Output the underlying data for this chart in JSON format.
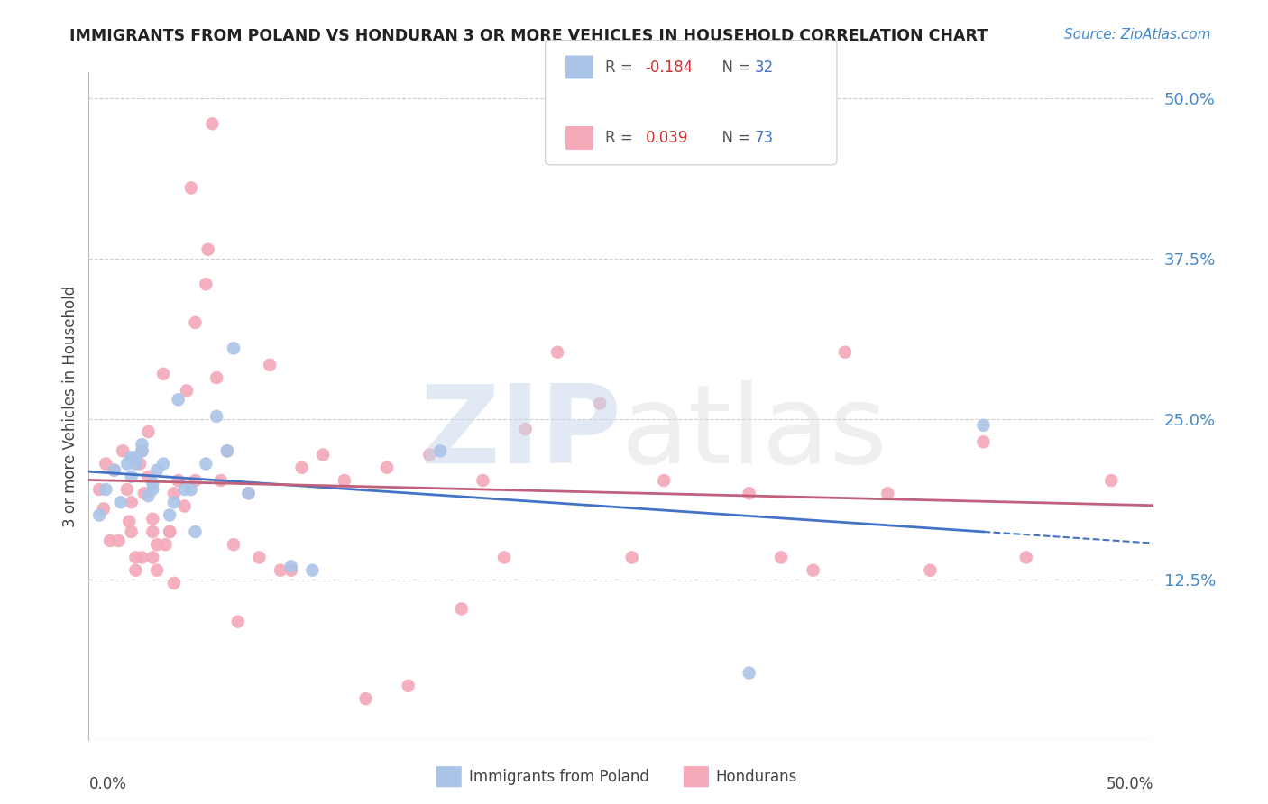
{
  "title": "IMMIGRANTS FROM POLAND VS HONDURAN 3 OR MORE VEHICLES IN HOUSEHOLD CORRELATION CHART",
  "source": "Source: ZipAtlas.com",
  "ylabel": "3 or more Vehicles in Household",
  "xlim": [
    0.0,
    0.5
  ],
  "ylim": [
    0.0,
    0.52
  ],
  "yticks": [
    0.0,
    0.125,
    0.25,
    0.375,
    0.5
  ],
  "ytick_labels": [
    "",
    "12.5%",
    "25.0%",
    "37.5%",
    "50.0%"
  ],
  "background_color": "#ffffff",
  "grid_color": "#d0d0d0",
  "poland_color": "#aac4e8",
  "honduran_color": "#f4a8b8",
  "poland_line_color": "#4472c4",
  "honduran_line_color": "#c0607a",
  "poland_R": -0.184,
  "poland_N": 32,
  "honduran_R": 0.039,
  "honduran_N": 73,
  "poland_x": [
    0.005,
    0.008,
    0.012,
    0.015,
    0.018,
    0.02,
    0.02,
    0.022,
    0.022,
    0.025,
    0.025,
    0.028,
    0.03,
    0.03,
    0.032,
    0.035,
    0.038,
    0.04,
    0.042,
    0.045,
    0.048,
    0.05,
    0.055,
    0.06,
    0.065,
    0.068,
    0.075,
    0.095,
    0.105,
    0.165,
    0.31,
    0.42
  ],
  "poland_y": [
    0.175,
    0.195,
    0.21,
    0.185,
    0.215,
    0.205,
    0.22,
    0.215,
    0.22,
    0.225,
    0.23,
    0.19,
    0.195,
    0.2,
    0.21,
    0.215,
    0.175,
    0.185,
    0.265,
    0.195,
    0.195,
    0.162,
    0.215,
    0.252,
    0.225,
    0.305,
    0.192,
    0.135,
    0.132,
    0.225,
    0.052,
    0.245
  ],
  "honduran_x": [
    0.005,
    0.007,
    0.008,
    0.01,
    0.012,
    0.014,
    0.016,
    0.018,
    0.019,
    0.02,
    0.02,
    0.022,
    0.022,
    0.024,
    0.025,
    0.025,
    0.026,
    0.028,
    0.028,
    0.03,
    0.03,
    0.03,
    0.032,
    0.032,
    0.035,
    0.036,
    0.038,
    0.038,
    0.04,
    0.04,
    0.042,
    0.045,
    0.046,
    0.048,
    0.05,
    0.05,
    0.055,
    0.056,
    0.058,
    0.06,
    0.062,
    0.065,
    0.068,
    0.07,
    0.075,
    0.08,
    0.085,
    0.09,
    0.095,
    0.1,
    0.11,
    0.12,
    0.13,
    0.14,
    0.15,
    0.16,
    0.175,
    0.185,
    0.195,
    0.205,
    0.22,
    0.24,
    0.255,
    0.27,
    0.31,
    0.325,
    0.34,
    0.355,
    0.375,
    0.395,
    0.42,
    0.44,
    0.48
  ],
  "honduran_y": [
    0.195,
    0.18,
    0.215,
    0.155,
    0.21,
    0.155,
    0.225,
    0.195,
    0.17,
    0.162,
    0.185,
    0.142,
    0.132,
    0.215,
    0.225,
    0.142,
    0.192,
    0.205,
    0.24,
    0.172,
    0.142,
    0.162,
    0.152,
    0.132,
    0.285,
    0.152,
    0.162,
    0.162,
    0.122,
    0.192,
    0.202,
    0.182,
    0.272,
    0.43,
    0.325,
    0.202,
    0.355,
    0.382,
    0.48,
    0.282,
    0.202,
    0.225,
    0.152,
    0.092,
    0.192,
    0.142,
    0.292,
    0.132,
    0.132,
    0.212,
    0.222,
    0.202,
    0.032,
    0.212,
    0.042,
    0.222,
    0.102,
    0.202,
    0.142,
    0.242,
    0.302,
    0.262,
    0.142,
    0.202,
    0.192,
    0.142,
    0.132,
    0.302,
    0.192,
    0.132,
    0.232,
    0.142,
    0.202
  ]
}
